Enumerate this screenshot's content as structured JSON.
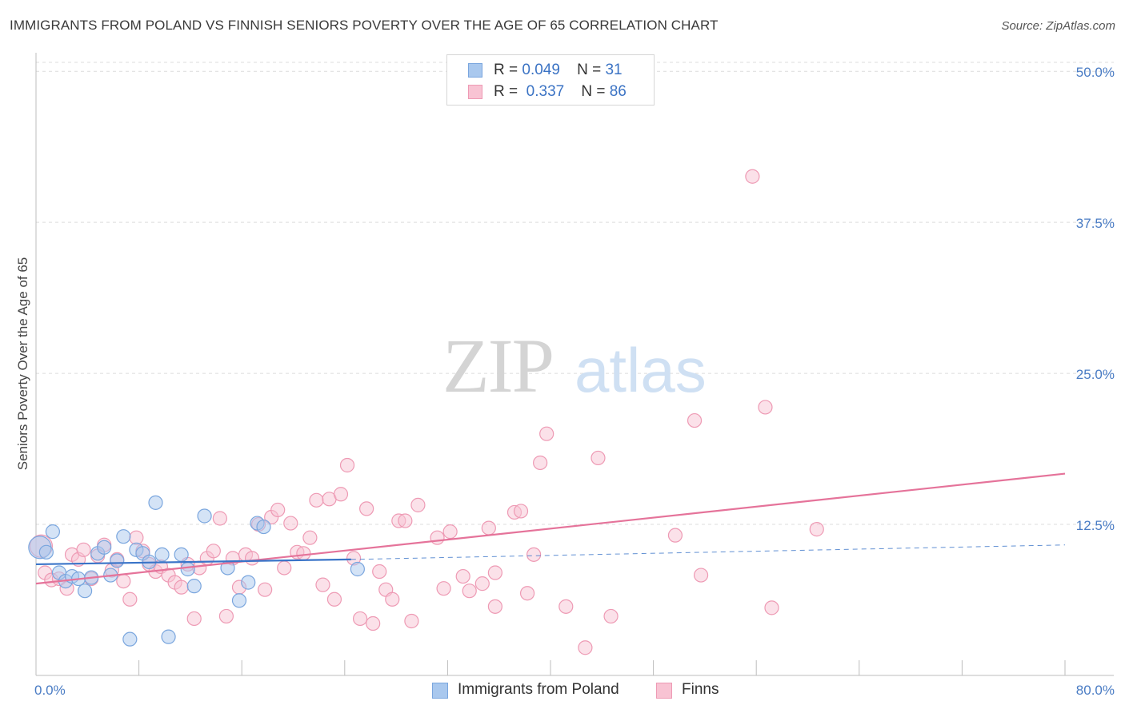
{
  "title": "IMMIGRANTS FROM POLAND VS FINNISH SENIORS POVERTY OVER THE AGE OF 65 CORRELATION CHART",
  "source": "Source: ZipAtlas.com",
  "watermark": {
    "zip": "ZIP",
    "atlas": "atlas"
  },
  "legend": {
    "rows": [
      {
        "r_label": "R =",
        "r_value": "0.049",
        "n_label": "N =",
        "n_value": "31",
        "color": "#a9c8ee",
        "border": "#7aa6de"
      },
      {
        "r_label": "R =",
        "r_value": "0.337",
        "n_label": "N =",
        "n_value": "86",
        "color": "#f8c3d3",
        "border": "#ee9ab4"
      }
    ]
  },
  "bottom_legend": {
    "items": [
      {
        "label": "Immigrants from Poland",
        "color": "#a9c8ee",
        "border": "#7aa6de"
      },
      {
        "label": "Finns",
        "color": "#f8c3d3",
        "border": "#ee9ab4"
      }
    ]
  },
  "chart_data": {
    "type": "scatter",
    "title": "IMMIGRANTS FROM POLAND VS FINNISH SENIORS POVERTY OVER THE AGE OF 65 CORRELATION CHART",
    "xlabel": "",
    "ylabel": "Seniors Poverty Over the Age of 65",
    "xlim": [
      0,
      80
    ],
    "ylim": [
      0,
      52
    ],
    "x_tick_labels": [
      "0.0%",
      "80.0%"
    ],
    "y_ticks": [
      12.5,
      25.0,
      37.5,
      50.0
    ],
    "y_tick_labels": [
      "12.5%",
      "25.0%",
      "37.5%",
      "50.0%"
    ],
    "grid": "dashed horizontal",
    "series": [
      {
        "name": "Immigrants from Poland",
        "color": "#a9c8ee",
        "stroke": "#7aa6de",
        "points": [
          [
            0.3,
            10.6
          ],
          [
            0.8,
            10.2
          ],
          [
            1.3,
            11.9
          ],
          [
            1.8,
            8.5
          ],
          [
            2.3,
            7.8
          ],
          [
            2.8,
            8.2
          ],
          [
            3.3,
            8.0
          ],
          [
            3.8,
            7.0
          ],
          [
            4.3,
            8.1
          ],
          [
            4.8,
            10.1
          ],
          [
            5.3,
            10.6
          ],
          [
            5.8,
            8.3
          ],
          [
            6.3,
            9.5
          ],
          [
            6.8,
            11.5
          ],
          [
            7.3,
            3.0
          ],
          [
            7.8,
            10.4
          ],
          [
            8.3,
            10.1
          ],
          [
            8.8,
            9.4
          ],
          [
            9.3,
            14.3
          ],
          [
            9.8,
            10.0
          ],
          [
            10.3,
            3.2
          ],
          [
            11.3,
            10.0
          ],
          [
            11.8,
            8.8
          ],
          [
            12.3,
            7.4
          ],
          [
            13.1,
            13.2
          ],
          [
            14.9,
            8.9
          ],
          [
            15.8,
            6.2
          ],
          [
            16.5,
            7.7
          ],
          [
            17.2,
            12.6
          ],
          [
            17.7,
            12.3
          ],
          [
            25.0,
            8.8
          ]
        ],
        "trend": {
          "x0": 0,
          "y0": 9.2,
          "x1": 24.5,
          "y1": 9.6,
          "dash_to_x": 80,
          "dash_to_y": 10.8
        }
      },
      {
        "name": "Finns",
        "color": "#f8c3d3",
        "stroke": "#ee9ab4",
        "points": [
          [
            0.7,
            8.5
          ],
          [
            1.2,
            7.9
          ],
          [
            1.8,
            8.0
          ],
          [
            2.4,
            7.2
          ],
          [
            2.8,
            10.0
          ],
          [
            3.3,
            9.6
          ],
          [
            3.7,
            10.4
          ],
          [
            4.3,
            8.0
          ],
          [
            4.8,
            9.9
          ],
          [
            5.3,
            10.8
          ],
          [
            5.9,
            8.7
          ],
          [
            6.3,
            9.6
          ],
          [
            6.8,
            7.8
          ],
          [
            7.3,
            6.3
          ],
          [
            7.8,
            11.4
          ],
          [
            8.3,
            10.3
          ],
          [
            8.8,
            9.2
          ],
          [
            9.3,
            8.6
          ],
          [
            9.7,
            9.0
          ],
          [
            10.3,
            8.3
          ],
          [
            10.8,
            7.7
          ],
          [
            11.3,
            7.3
          ],
          [
            11.8,
            9.2
          ],
          [
            12.3,
            4.7
          ],
          [
            12.7,
            8.9
          ],
          [
            13.3,
            9.7
          ],
          [
            13.8,
            10.3
          ],
          [
            14.3,
            13.0
          ],
          [
            14.8,
            4.9
          ],
          [
            15.3,
            9.7
          ],
          [
            15.8,
            7.3
          ],
          [
            16.3,
            10.0
          ],
          [
            16.8,
            9.7
          ],
          [
            17.3,
            12.5
          ],
          [
            17.8,
            7.1
          ],
          [
            18.3,
            13.1
          ],
          [
            18.8,
            13.7
          ],
          [
            19.3,
            8.9
          ],
          [
            19.8,
            12.6
          ],
          [
            20.3,
            10.2
          ],
          [
            20.8,
            10.1
          ],
          [
            21.3,
            11.4
          ],
          [
            21.8,
            14.5
          ],
          [
            22.3,
            7.5
          ],
          [
            22.8,
            14.6
          ],
          [
            23.2,
            6.3
          ],
          [
            23.7,
            15.0
          ],
          [
            24.2,
            17.4
          ],
          [
            24.7,
            9.7
          ],
          [
            25.2,
            4.7
          ],
          [
            25.7,
            13.8
          ],
          [
            26.2,
            4.3
          ],
          [
            26.7,
            8.6
          ],
          [
            27.2,
            7.1
          ],
          [
            27.7,
            6.3
          ],
          [
            28.2,
            12.8
          ],
          [
            28.7,
            12.8
          ],
          [
            29.2,
            4.5
          ],
          [
            29.7,
            14.1
          ],
          [
            31.2,
            11.4
          ],
          [
            31.7,
            7.2
          ],
          [
            32.2,
            11.9
          ],
          [
            33.2,
            8.2
          ],
          [
            33.7,
            7.0
          ],
          [
            34.7,
            7.6
          ],
          [
            35.2,
            12.2
          ],
          [
            35.7,
            5.7
          ],
          [
            35.7,
            8.5
          ],
          [
            37.2,
            13.5
          ],
          [
            37.7,
            13.6
          ],
          [
            38.2,
            6.8
          ],
          [
            38.7,
            10.0
          ],
          [
            39.2,
            17.6
          ],
          [
            39.7,
            20.0
          ],
          [
            41.2,
            5.7
          ],
          [
            42.7,
            2.3
          ],
          [
            43.7,
            18.0
          ],
          [
            44.7,
            4.9
          ],
          [
            49.7,
            11.6
          ],
          [
            51.2,
            21.1
          ],
          [
            51.7,
            8.3
          ],
          [
            55.7,
            41.3
          ],
          [
            56.7,
            22.2
          ],
          [
            57.2,
            5.6
          ],
          [
            60.7,
            12.1
          ],
          [
            0.4,
            10.7
          ]
        ],
        "trend": {
          "x0": 0,
          "y0": 7.6,
          "x1": 80,
          "y1": 16.7
        }
      }
    ]
  }
}
